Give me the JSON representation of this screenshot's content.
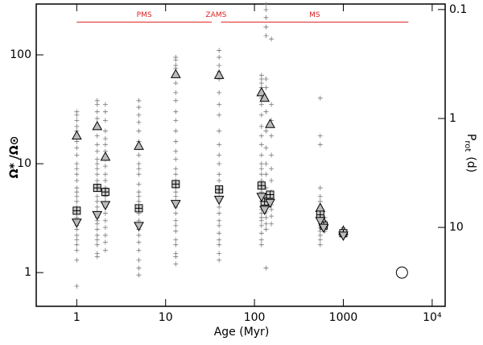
{
  "chart_data": {
    "type": "scatter",
    "xlabel": "Age (Myr)",
    "ylabel": "Ω* /Ω⊙",
    "y2label": {
      "main": "P",
      "sub": "rot",
      "unit": "(d)"
    },
    "xlog": true,
    "ylog": true,
    "y2log": true,
    "xlim": [
      0.35,
      14000
    ],
    "ylim": [
      0.49,
      293
    ],
    "y2lim": [
      53,
      0.089
    ],
    "xticks": [
      1,
      10,
      100,
      1000,
      {
        "value": 10000,
        "label": "10⁴"
      }
    ],
    "yticks": [
      1,
      10,
      100
    ],
    "y2ticks": [
      0.1,
      1,
      10
    ],
    "annotations": [
      {
        "text": "PMS",
        "x": [
          1,
          33
        ],
        "y": 200,
        "color": "#d22"
      },
      {
        "text": "ZAMS",
        "x": [
          37
        ],
        "y": 200,
        "color": "#d22"
      },
      {
        "text": "MS",
        "x": [
          42,
          5400
        ],
        "y": 200,
        "color": "#d22"
      }
    ],
    "series": [
      {
        "marker": "plus",
        "color": "#777",
        "x": 1,
        "values": [
          30,
          28,
          25,
          22,
          20,
          16,
          14,
          12,
          10,
          9,
          8,
          7,
          6,
          5.5,
          5,
          4.5,
          4,
          3.5,
          3.2,
          3,
          2.7,
          2.5,
          2.2,
          2,
          1.8,
          1.6,
          1.3,
          0.75
        ]
      },
      {
        "marker": "plus",
        "color": "#777",
        "x": 1.7,
        "values": [
          38,
          35,
          30,
          26,
          22,
          18,
          15,
          13,
          11,
          10,
          9,
          8,
          7,
          6.5,
          6,
          5,
          4.5,
          4,
          3.6,
          3.2,
          3,
          2.8,
          2.5,
          2.2,
          2,
          1.8,
          1.5,
          1.4
        ]
      },
      {
        "marker": "plus",
        "color": "#777",
        "x": 2.1,
        "values": [
          35,
          30,
          25,
          20,
          17,
          15,
          13,
          11,
          9.5,
          8,
          7,
          6,
          5,
          4.5,
          4,
          3.5,
          3,
          2.6,
          2.2,
          1.9,
          1.6
        ]
      },
      {
        "marker": "plus",
        "color": "#777",
        "x": 5,
        "values": [
          38,
          33,
          28,
          24,
          20,
          16,
          14,
          12,
          10,
          9,
          8,
          6.5,
          5.5,
          5,
          4.5,
          4,
          3.5,
          3,
          2.5,
          2.2,
          1.9,
          1.6,
          1.3,
          1.1,
          0.95
        ]
      },
      {
        "marker": "plus",
        "color": "#777",
        "x": 13,
        "values": [
          95,
          90,
          80,
          75,
          65,
          55,
          45,
          38,
          30,
          25,
          20,
          16,
          13,
          11,
          9,
          8,
          7,
          6,
          5.5,
          5,
          4.5,
          4,
          3.5,
          3,
          2.7,
          2.4,
          2,
          1.8,
          1.5,
          1.4,
          1.2
        ]
      },
      {
        "marker": "plus",
        "color": "#777",
        "x": 40,
        "values": [
          110,
          95,
          80,
          70,
          60,
          45,
          35,
          28,
          20,
          15,
          12,
          10,
          8,
          7,
          6,
          5.5,
          5,
          4.5,
          4,
          3.5,
          3,
          2.7,
          2.3,
          2,
          1.8,
          1.5,
          1.3
        ]
      },
      {
        "marker": "plus",
        "color": "#777",
        "x": 120,
        "values": [
          65,
          60,
          55,
          50,
          45,
          40,
          35,
          28,
          22,
          18,
          15,
          12,
          10,
          9,
          8,
          7,
          6.5,
          6,
          5.5,
          5,
          4.5,
          4,
          3.8,
          3.5,
          3.2,
          3,
          2.7,
          2.3,
          2,
          1.8
        ]
      },
      {
        "marker": "plus",
        "color": "#777",
        "x": 135,
        "values": [
          290,
          260,
          220,
          180,
          150,
          60,
          50,
          30,
          20,
          14,
          10,
          8,
          6,
          5,
          4.5,
          4,
          3.6,
          3.2,
          2.8,
          2.5,
          1.1
        ]
      },
      {
        "marker": "plus",
        "color": "#777",
        "x": 155,
        "values": [
          140,
          35,
          25,
          18,
          12,
          9,
          7,
          5.5,
          4.8,
          4.2,
          3.8,
          3.3,
          2.8
        ]
      },
      {
        "marker": "plus",
        "color": "#777",
        "x": 550,
        "values": [
          40,
          18,
          15,
          6,
          5,
          4.5,
          4,
          3.7,
          3.4,
          3.2,
          3,
          2.8,
          2.6,
          2.4,
          2.2,
          2,
          1.8
        ]
      },
      {
        "marker": "plus",
        "color": "#777",
        "x": 620,
        "values": [
          3.2,
          3,
          2.9,
          2.8,
          2.7,
          2.6,
          2.5,
          2.4
        ]
      },
      {
        "marker": "plus",
        "color": "#777",
        "x": 1000,
        "values": [
          2.6,
          2.5,
          2.4,
          2.35,
          2.3,
          2.25,
          2.2,
          2.1
        ]
      },
      {
        "marker": "triangle-up",
        "color": "#bbb",
        "x": [
          1,
          1.7,
          2.1,
          5,
          13,
          40,
          120,
          130,
          150,
          550,
          600,
          1000
        ],
        "values": [
          18,
          22,
          11.5,
          14.5,
          66,
          65,
          45,
          40,
          23,
          3.9,
          2.9,
          2.4
        ]
      },
      {
        "marker": "square",
        "color": "#ccc",
        "x": [
          1,
          1.7,
          2.1,
          5,
          13,
          40,
          120,
          130,
          150,
          550,
          600,
          1000
        ],
        "values": [
          3.7,
          6,
          5.5,
          3.9,
          6.5,
          5.8,
          6.3,
          4.5,
          5.2,
          3.4,
          2.7,
          2.3
        ]
      },
      {
        "marker": "triangle-down",
        "color": "#bbb",
        "x": [
          1,
          1.7,
          2.1,
          5,
          13,
          40,
          120,
          130,
          150,
          550,
          600,
          1000
        ],
        "values": [
          2.9,
          3.4,
          4.2,
          2.7,
          4.3,
          4.7,
          5,
          3.8,
          4.4,
          3,
          2.6,
          2.2
        ]
      },
      {
        "marker": "circle",
        "color": "none",
        "x": [
          4570
        ],
        "values": [
          1
        ]
      }
    ]
  }
}
